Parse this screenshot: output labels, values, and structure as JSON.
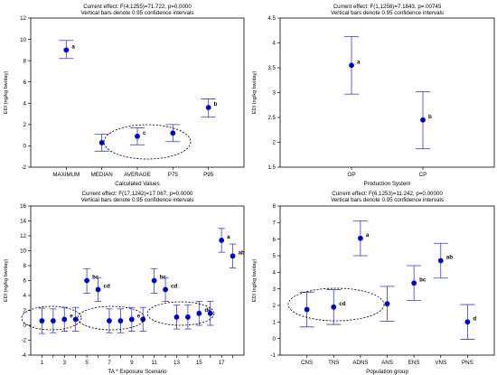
{
  "chart_data": [
    {
      "type": "scatter",
      "title": "Current effect: F(4,1255)=71.722, p=0.0000",
      "subtitle": "Vertical bars denote 0.95 confidence intervals",
      "xlabel": "Calculated Values",
      "ylabel": "EDI (ng/kg bw/day)",
      "ylim": [
        -2,
        12
      ],
      "yticks": [
        -2,
        0,
        2,
        4,
        6,
        8,
        10,
        12
      ],
      "categories": [
        "MAXIMUM",
        "MEDIAN",
        "AVERAGE",
        "P75",
        "P95"
      ],
      "points": [
        {
          "mean": 9.0,
          "low": 8.2,
          "high": 9.9,
          "label": "a"
        },
        {
          "mean": 0.3,
          "low": -0.5,
          "high": 1.1,
          "label": ""
        },
        {
          "mean": 0.9,
          "low": 0.1,
          "high": 1.7,
          "label": "c"
        },
        {
          "mean": 1.2,
          "low": 0.4,
          "high": 2.0,
          "label": ""
        },
        {
          "mean": 3.6,
          "low": 2.7,
          "high": 4.4,
          "label": "b"
        }
      ],
      "color": "#0000cc",
      "grid": false
    },
    {
      "type": "scatter",
      "title": "Current effect: F(1,1256)=7.1843, p=.00745",
      "subtitle": "Vertical bars denote 0.95 confidence intervals",
      "xlabel": "Production System",
      "ylabel": "EDI (ng/kg bw/day)",
      "ylim": [
        1.5,
        4.5
      ],
      "yticks": [
        1.5,
        2.0,
        2.5,
        3.0,
        3.5,
        4.0,
        4.5
      ],
      "categories": [
        "OP",
        "CP"
      ],
      "points": [
        {
          "mean": 3.55,
          "low": 2.97,
          "high": 4.13,
          "label": "a"
        },
        {
          "mean": 2.45,
          "low": 1.87,
          "high": 3.02,
          "label": "b"
        }
      ],
      "color": "#0000cc",
      "grid": false
    },
    {
      "type": "scatter",
      "title": "Current effect: F(17,1242)=17.067, p=0.0000",
      "subtitle": "Vertical bars denote 0.95 confidence intervals",
      "xlabel": "TA * Exposure Scenario",
      "ylabel": "EDI (ng/kg bw/day)",
      "ylim": [
        -4,
        16
      ],
      "yticks": [
        -4,
        -2,
        0,
        2,
        4,
        6,
        8,
        10,
        12,
        14,
        16
      ],
      "xtick_labels": [
        "1",
        "3",
        "5",
        "7",
        "9",
        "11",
        "13",
        "15",
        "17"
      ],
      "categories": [
        "1",
        "2",
        "3",
        "4",
        "5",
        "6",
        "7",
        "8",
        "9",
        "10",
        "11",
        "12",
        "13",
        "14",
        "15",
        "16",
        "17",
        "18"
      ],
      "points": [
        {
          "mean": 0.6,
          "low": -1.1,
          "high": 2.3,
          "label": ""
        },
        {
          "mean": 0.6,
          "low": -1.0,
          "high": 2.2,
          "label": ""
        },
        {
          "mean": 0.8,
          "low": -0.8,
          "high": 2.4,
          "label": "e"
        },
        {
          "mean": 0.8,
          "low": -0.8,
          "high": 2.4,
          "label": ""
        },
        {
          "mean": 6.0,
          "low": 4.3,
          "high": 7.6,
          "label": "bc"
        },
        {
          "mean": 4.8,
          "low": 3.2,
          "high": 6.4,
          "label": "cd"
        },
        {
          "mean": 0.6,
          "low": -1.0,
          "high": 2.2,
          "label": ""
        },
        {
          "mean": 0.6,
          "low": -1.0,
          "high": 2.2,
          "label": ""
        },
        {
          "mean": 0.8,
          "low": -0.8,
          "high": 2.4,
          "label": "e"
        },
        {
          "mean": 0.8,
          "low": -0.8,
          "high": 2.4,
          "label": ""
        },
        {
          "mean": 6.0,
          "low": 4.3,
          "high": 7.6,
          "label": "bc"
        },
        {
          "mean": 4.8,
          "low": 3.2,
          "high": 6.4,
          "label": "cd"
        },
        {
          "mean": 1.1,
          "low": -0.5,
          "high": 2.7,
          "label": ""
        },
        {
          "mean": 1.1,
          "low": -0.5,
          "high": 2.7,
          "label": ""
        },
        {
          "mean": 1.6,
          "low": 0.0,
          "high": 3.2,
          "label": "de"
        },
        {
          "mean": 1.6,
          "low": 0.0,
          "high": 3.2,
          "label": ""
        },
        {
          "mean": 11.4,
          "low": 9.8,
          "high": 13.0,
          "label": "a"
        },
        {
          "mean": 9.3,
          "low": 7.7,
          "high": 10.9,
          "label": "ab"
        }
      ],
      "color": "#0000cc",
      "grid": false
    },
    {
      "type": "scatter",
      "title": "Current effect: F(6,1253)=11.242, p=0.00000",
      "subtitle": "Vertical bars denote 0.95 confidence intervals",
      "xlabel": "Population group",
      "ylabel": "EDI (ng/kg bw/day)",
      "ylim": [
        -1,
        8
      ],
      "yticks": [
        -1,
        0,
        1,
        2,
        3,
        4,
        5,
        6,
        7,
        8
      ],
      "categories": [
        "CNS",
        "TNS",
        "ADNS",
        "ANS",
        "ENS",
        "VNS",
        "PNS"
      ],
      "points": [
        {
          "mean": 1.75,
          "low": 0.7,
          "high": 2.8,
          "label": ""
        },
        {
          "mean": 1.9,
          "low": 0.85,
          "high": 2.95,
          "label": "cd"
        },
        {
          "mean": 6.05,
          "low": 5.0,
          "high": 7.1,
          "label": "a"
        },
        {
          "mean": 2.1,
          "low": 1.05,
          "high": 3.15,
          "label": ""
        },
        {
          "mean": 3.35,
          "low": 2.3,
          "high": 4.4,
          "label": "bc"
        },
        {
          "mean": 4.7,
          "low": 3.65,
          "high": 5.75,
          "label": "ab"
        },
        {
          "mean": 1.0,
          "low": -0.05,
          "high": 2.05,
          "label": "d"
        }
      ],
      "color": "#0000cc",
      "grid": false
    }
  ]
}
